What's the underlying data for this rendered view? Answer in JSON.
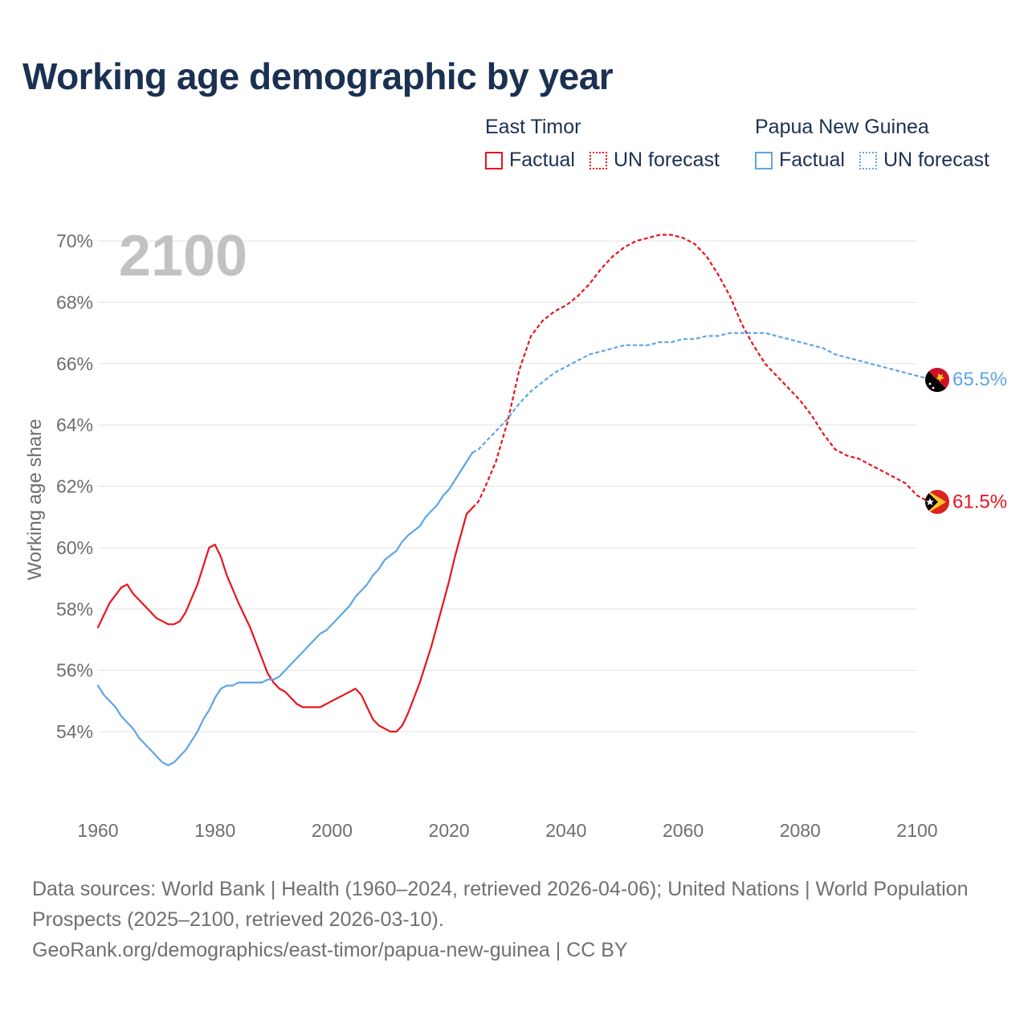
{
  "title": "Working age demographic by year",
  "legend": [
    {
      "country": "East Timor",
      "factual_label": "Factual",
      "forecast_label": "UN forecast",
      "color": "#e8141c"
    },
    {
      "country": "Papua New Guinea",
      "factual_label": "Factual",
      "forecast_label": "UN forecast",
      "color": "#5ea5e6"
    }
  ],
  "footer": {
    "sources": "Data sources: World Bank | Health (1960–2024, retrieved 2026-04-06); United Nations | World Population Prospects (2025–2100, retrieved 2026-03-10).",
    "link": "GeoRank.org/demographics/east-timor/papua-new-guinea | CC BY"
  },
  "chart_data": {
    "type": "line",
    "year_label": "2100",
    "ylabel": "Working age share",
    "xlim": [
      1960,
      2100
    ],
    "ylim": [
      52,
      70.5
    ],
    "x_ticks": [
      "1960",
      "1980",
      "2000",
      "2020",
      "2040",
      "2060",
      "2080",
      "2100"
    ],
    "y_ticks": [
      "54%",
      "56%",
      "58%",
      "60%",
      "62%",
      "64%",
      "66%",
      "68%",
      "70%"
    ],
    "factual_end_year": 2024,
    "series": [
      {
        "name": "East Timor",
        "color": "#e8141c",
        "end_label": "61.5%",
        "points": [
          [
            1960,
            57.4
          ],
          [
            1962,
            58.2
          ],
          [
            1964,
            58.7
          ],
          [
            1965,
            58.8
          ],
          [
            1966,
            58.5
          ],
          [
            1968,
            58.1
          ],
          [
            1970,
            57.7
          ],
          [
            1972,
            57.5
          ],
          [
            1973,
            57.5
          ],
          [
            1974,
            57.6
          ],
          [
            1975,
            57.9
          ],
          [
            1977,
            58.8
          ],
          [
            1979,
            60.0
          ],
          [
            1980,
            60.1
          ],
          [
            1981,
            59.7
          ],
          [
            1982,
            59.1
          ],
          [
            1984,
            58.2
          ],
          [
            1986,
            57.4
          ],
          [
            1988,
            56.4
          ],
          [
            1989,
            55.9
          ],
          [
            1990,
            55.6
          ],
          [
            1991,
            55.4
          ],
          [
            1992,
            55.3
          ],
          [
            1993,
            55.1
          ],
          [
            1994,
            54.9
          ],
          [
            1995,
            54.8
          ],
          [
            1998,
            54.8
          ],
          [
            2000,
            55.0
          ],
          [
            2002,
            55.2
          ],
          [
            2004,
            55.4
          ],
          [
            2005,
            55.2
          ],
          [
            2006,
            54.8
          ],
          [
            2007,
            54.4
          ],
          [
            2008,
            54.2
          ],
          [
            2009,
            54.1
          ],
          [
            2010,
            54.0
          ],
          [
            2011,
            54.0
          ],
          [
            2012,
            54.2
          ],
          [
            2013,
            54.6
          ],
          [
            2014,
            55.1
          ],
          [
            2015,
            55.6
          ],
          [
            2016,
            56.2
          ],
          [
            2017,
            56.8
          ],
          [
            2018,
            57.5
          ],
          [
            2019,
            58.2
          ],
          [
            2020,
            58.9
          ],
          [
            2021,
            59.7
          ],
          [
            2022,
            60.4
          ],
          [
            2023,
            61.1
          ],
          [
            2024,
            61.3
          ],
          [
            2025,
            61.5
          ],
          [
            2026,
            61.9
          ],
          [
            2028,
            62.8
          ],
          [
            2030,
            64.1
          ],
          [
            2032,
            65.8
          ],
          [
            2034,
            66.9
          ],
          [
            2036,
            67.4
          ],
          [
            2038,
            67.7
          ],
          [
            2040,
            67.9
          ],
          [
            2042,
            68.2
          ],
          [
            2044,
            68.6
          ],
          [
            2046,
            69.1
          ],
          [
            2048,
            69.5
          ],
          [
            2050,
            69.8
          ],
          [
            2052,
            70.0
          ],
          [
            2054,
            70.1
          ],
          [
            2056,
            70.2
          ],
          [
            2058,
            70.2
          ],
          [
            2060,
            70.1
          ],
          [
            2062,
            69.9
          ],
          [
            2064,
            69.5
          ],
          [
            2066,
            68.9
          ],
          [
            2068,
            68.2
          ],
          [
            2070,
            67.3
          ],
          [
            2072,
            66.6
          ],
          [
            2074,
            66.0
          ],
          [
            2076,
            65.6
          ],
          [
            2078,
            65.2
          ],
          [
            2080,
            64.8
          ],
          [
            2082,
            64.3
          ],
          [
            2084,
            63.7
          ],
          [
            2086,
            63.2
          ],
          [
            2088,
            63.0
          ],
          [
            2090,
            62.9
          ],
          [
            2092,
            62.7
          ],
          [
            2094,
            62.5
          ],
          [
            2096,
            62.3
          ],
          [
            2098,
            62.1
          ],
          [
            2100,
            61.7
          ],
          [
            2102,
            61.5
          ]
        ]
      },
      {
        "name": "Papua New Guinea",
        "color": "#5ea5e6",
        "end_label": "65.5%",
        "points": [
          [
            1960,
            55.5
          ],
          [
            1961,
            55.2
          ],
          [
            1963,
            54.8
          ],
          [
            1964,
            54.5
          ],
          [
            1966,
            54.1
          ],
          [
            1967,
            53.8
          ],
          [
            1969,
            53.4
          ],
          [
            1971,
            53.0
          ],
          [
            1972,
            52.9
          ],
          [
            1973,
            53.0
          ],
          [
            1975,
            53.4
          ],
          [
            1977,
            54.0
          ],
          [
            1978,
            54.4
          ],
          [
            1979,
            54.7
          ],
          [
            1980,
            55.1
          ],
          [
            1981,
            55.4
          ],
          [
            1982,
            55.5
          ],
          [
            1983,
            55.5
          ],
          [
            1984,
            55.6
          ],
          [
            1986,
            55.6
          ],
          [
            1988,
            55.6
          ],
          [
            1989,
            55.7
          ],
          [
            1990,
            55.7
          ],
          [
            1991,
            55.8
          ],
          [
            1993,
            56.2
          ],
          [
            1995,
            56.6
          ],
          [
            1997,
            57.0
          ],
          [
            1998,
            57.2
          ],
          [
            1999,
            57.3
          ],
          [
            2001,
            57.7
          ],
          [
            2003,
            58.1
          ],
          [
            2004,
            58.4
          ],
          [
            2006,
            58.8
          ],
          [
            2007,
            59.1
          ],
          [
            2008,
            59.3
          ],
          [
            2009,
            59.6
          ],
          [
            2011,
            59.9
          ],
          [
            2012,
            60.2
          ],
          [
            2013,
            60.4
          ],
          [
            2015,
            60.7
          ],
          [
            2016,
            61.0
          ],
          [
            2017,
            61.2
          ],
          [
            2018,
            61.4
          ],
          [
            2019,
            61.7
          ],
          [
            2020,
            61.9
          ],
          [
            2021,
            62.2
          ],
          [
            2022,
            62.5
          ],
          [
            2023,
            62.8
          ],
          [
            2024,
            63.1
          ],
          [
            2025,
            63.2
          ],
          [
            2026,
            63.4
          ],
          [
            2028,
            63.8
          ],
          [
            2030,
            64.2
          ],
          [
            2032,
            64.7
          ],
          [
            2034,
            65.1
          ],
          [
            2036,
            65.4
          ],
          [
            2038,
            65.7
          ],
          [
            2040,
            65.9
          ],
          [
            2042,
            66.1
          ],
          [
            2044,
            66.3
          ],
          [
            2046,
            66.4
          ],
          [
            2048,
            66.5
          ],
          [
            2050,
            66.6
          ],
          [
            2052,
            66.6
          ],
          [
            2054,
            66.6
          ],
          [
            2056,
            66.7
          ],
          [
            2058,
            66.7
          ],
          [
            2060,
            66.8
          ],
          [
            2062,
            66.8
          ],
          [
            2064,
            66.9
          ],
          [
            2066,
            66.9
          ],
          [
            2068,
            67.0
          ],
          [
            2070,
            67.0
          ],
          [
            2072,
            67.0
          ],
          [
            2074,
            67.0
          ],
          [
            2076,
            66.9
          ],
          [
            2078,
            66.8
          ],
          [
            2080,
            66.7
          ],
          [
            2082,
            66.6
          ],
          [
            2084,
            66.5
          ],
          [
            2086,
            66.3
          ],
          [
            2088,
            66.2
          ],
          [
            2090,
            66.1
          ],
          [
            2092,
            66.0
          ],
          [
            2094,
            65.9
          ],
          [
            2096,
            65.8
          ],
          [
            2098,
            65.7
          ],
          [
            2100,
            65.6
          ],
          [
            2102,
            65.5
          ]
        ]
      }
    ]
  }
}
